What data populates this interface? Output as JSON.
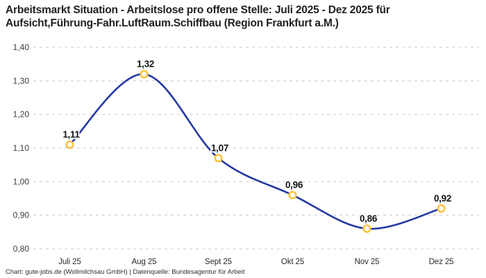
{
  "header": {
    "title_lines": [
      "Arbeitsmarkt Situation - Arbeitslose pro offene Stelle: Juli 2025 - Dez 2025 für",
      "Aufsicht,Führung-Fahr.LuftRaum.Schiffbau (Region Frankfurt a.M.)"
    ]
  },
  "chart_data": {
    "type": "line",
    "title": "Arbeitsmarkt Situation - Arbeitslose pro offene Stelle: Juli 2025 - Dez 2025 für Aufsicht,Führung-Fahr.LuftRaum.Schiffbau (Region Frankfurt a.M.)",
    "categories": [
      "Juli 25",
      "Aug 25",
      "Sept 25",
      "Okt 25",
      "Nov 25",
      "Dez 25"
    ],
    "values": [
      1.11,
      1.32,
      1.07,
      0.96,
      0.86,
      0.92
    ],
    "point_labels": [
      "1,11",
      "1,32",
      "1,07",
      "0,96",
      "0,86",
      "0,92"
    ],
    "y_tick_labels": [
      "1,40",
      "1,30",
      "1,20",
      "1,10",
      "1,00",
      "0,90",
      "0,80"
    ],
    "y_tick_values": [
      1.4,
      1.3,
      1.2,
      1.1,
      1.0,
      0.9,
      0.8
    ],
    "ylim": [
      0.8,
      1.4
    ],
    "xlabel": "",
    "ylabel": "",
    "legend": "none",
    "grid": "horizontal-dashed",
    "line_shape": "smooth",
    "colors": {
      "line": "#2439a3",
      "marker_stroke": "#fbc43d",
      "marker_fill": "#ffffff",
      "grid": "#c9c9c9",
      "y_tick_text": "#3b3b3f",
      "x_tick_text": "#2a2a2e",
      "point_label_text": "#15151a"
    }
  },
  "footer": {
    "credit": "Chart: gute-jobs.de (Wollmilchsau GmbH) | Datenquelle: Bundesagentur für Arbeit"
  }
}
